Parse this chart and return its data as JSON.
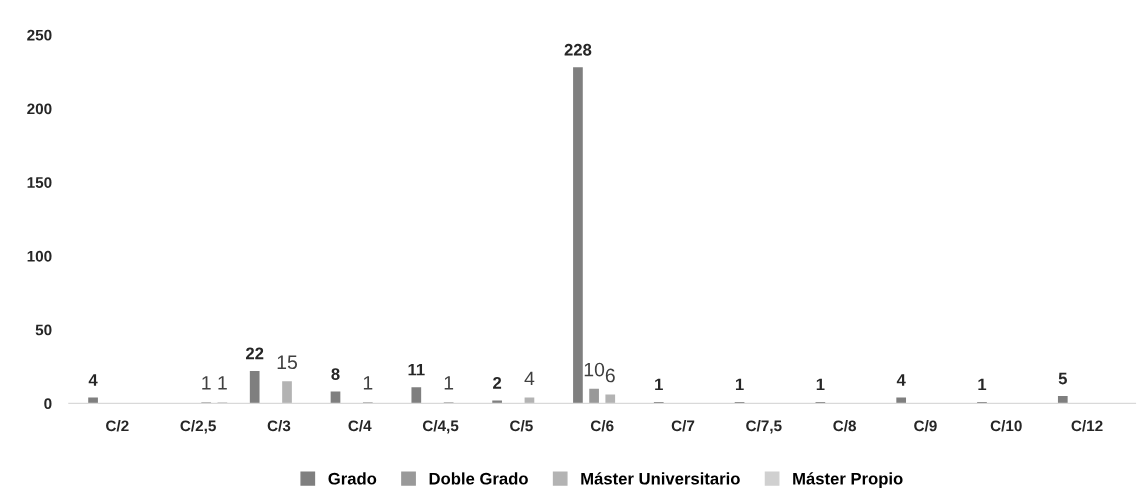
{
  "chart_data": {
    "type": "bar",
    "categories": [
      "C/2",
      "C/2,5",
      "C/3",
      "C/4",
      "C/4,5",
      "C/5",
      "C/6",
      "C/7",
      "C/7,5",
      "C/8",
      "C/9",
      "C/10",
      "C/12"
    ],
    "series": [
      {
        "name": "Grado",
        "color": "#7f7f7f",
        "values": [
          4,
          null,
          22,
          8,
          11,
          2,
          228,
          1,
          1,
          1,
          4,
          1,
          5
        ]
      },
      {
        "name": "Doble Grado",
        "color": "#999999",
        "values": [
          null,
          null,
          null,
          null,
          null,
          null,
          10,
          null,
          null,
          null,
          null,
          null,
          null
        ]
      },
      {
        "name": "Máster Universitario",
        "color": "#b3b3b3",
        "values": [
          null,
          1,
          15,
          1,
          1,
          4,
          6,
          null,
          null,
          null,
          null,
          null,
          null
        ]
      },
      {
        "name": "Máster Propio",
        "color": "#d0d0d0",
        "values": [
          null,
          1,
          null,
          null,
          null,
          null,
          null,
          null,
          null,
          null,
          null,
          null,
          null
        ]
      }
    ],
    "ylim": [
      0,
      250
    ],
    "yticks": [
      0,
      50,
      100,
      150,
      200,
      250
    ],
    "grid": false,
    "legend": "bottom",
    "data_labels": true
  }
}
